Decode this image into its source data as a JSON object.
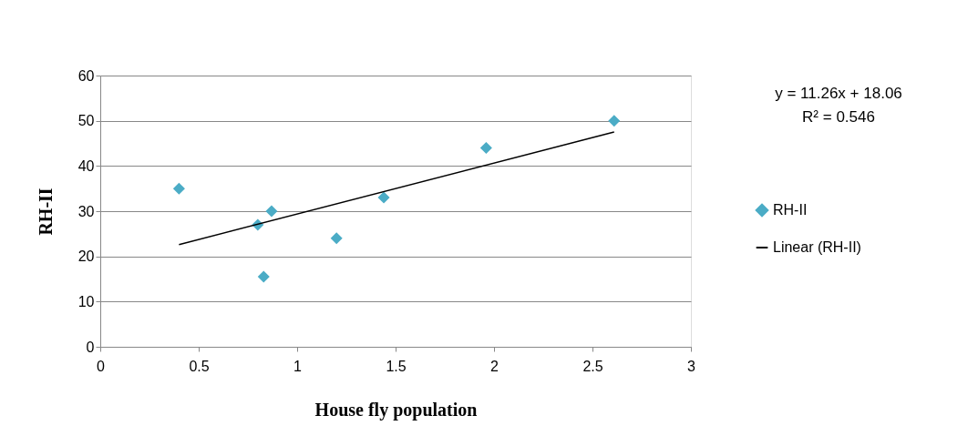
{
  "chart_data": {
    "type": "scatter",
    "xlabel": "House fly population",
    "ylabel": "RH-II",
    "xlim": [
      0,
      3
    ],
    "xticks": [
      0,
      0.5,
      1,
      1.5,
      2,
      2.5,
      3
    ],
    "ylim": [
      0,
      60
    ],
    "yticks": [
      0,
      10,
      20,
      30,
      40,
      50,
      60
    ],
    "grid": "y",
    "legend": "right",
    "series": [
      {
        "name": "RH-II",
        "color": "#4bacc6",
        "marker": "diamond",
        "x": [
          0.4,
          0.8,
          0.83,
          0.87,
          1.2,
          1.44,
          1.96,
          2.61
        ],
        "values": [
          35,
          27,
          15.5,
          30,
          24,
          33,
          44,
          50
        ]
      },
      {
        "name": "Linear (RH-II)",
        "type": "line",
        "color": "#000000",
        "marker": "none",
        "x": [
          0.4,
          2.61
        ],
        "values": [
          22.6,
          47.5
        ]
      }
    ],
    "annotations": [
      "y = 11.26x + 18.06",
      "R² = 0.546"
    ]
  }
}
